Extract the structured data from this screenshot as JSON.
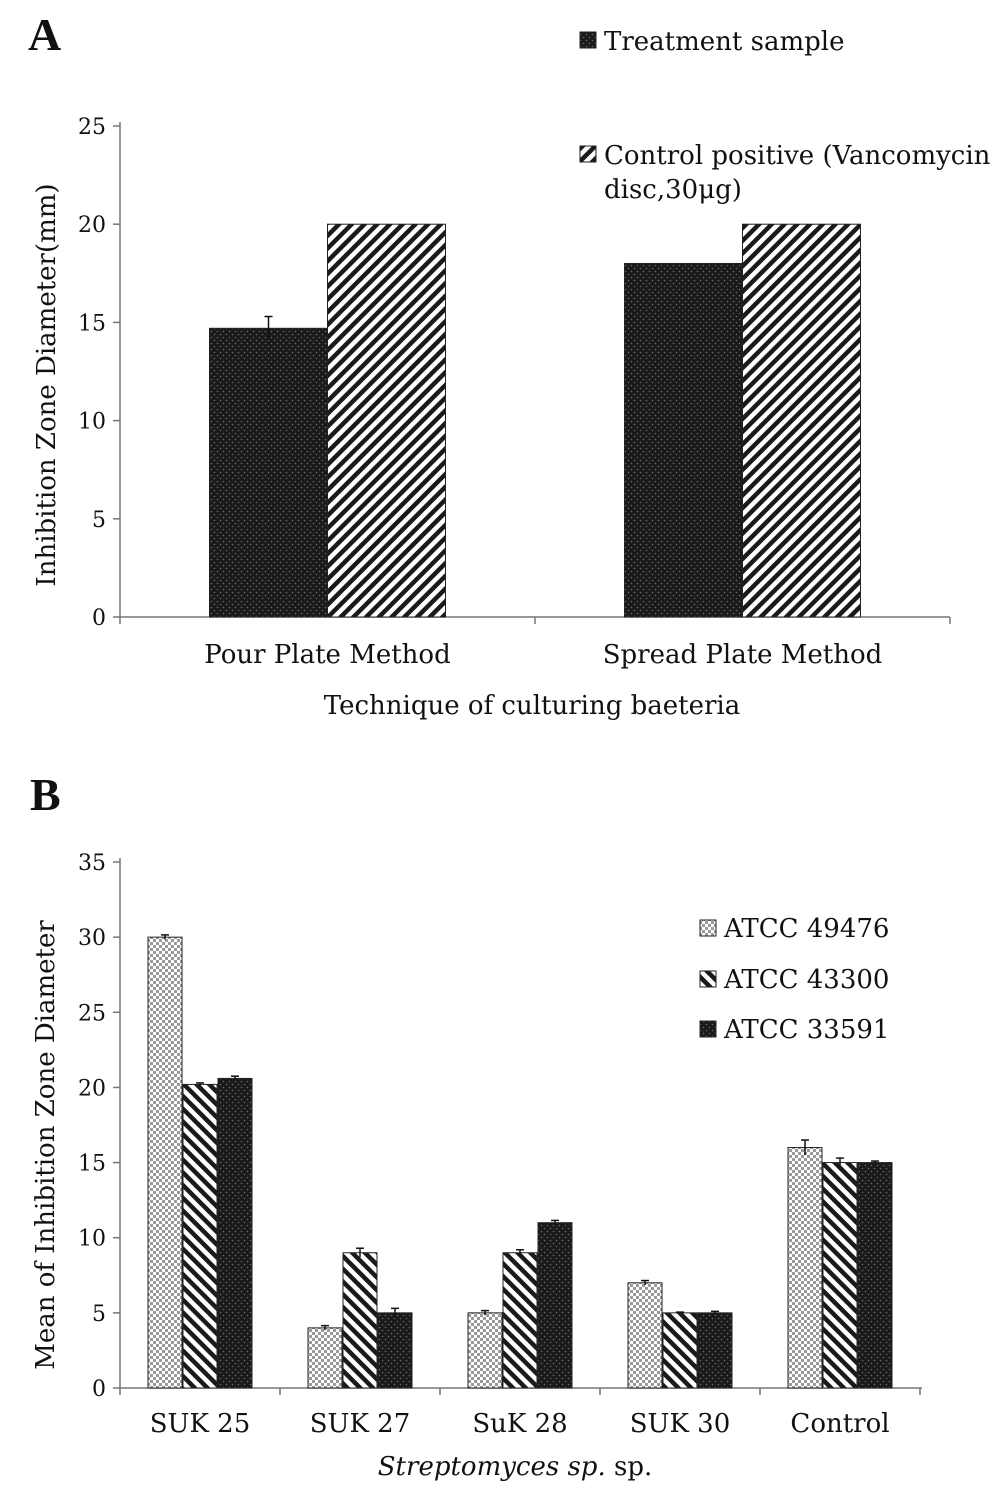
{
  "chart_data": [
    {
      "panel": "A",
      "type": "bar",
      "xlabel": "Technique of culturing baeteria",
      "ylabel": "Inhibition Zone Diameter(mm)",
      "ylim": [
        0,
        25
      ],
      "yticks": [
        0,
        5,
        10,
        15,
        20,
        25
      ],
      "categories": [
        "Pour Plate Method",
        "Spread Plate Method"
      ],
      "legend_position": "top-right",
      "series": [
        {
          "name": "Treatment sample",
          "pattern": "dark-dots",
          "values": [
            14.7,
            18
          ],
          "errors": [
            0.6,
            0
          ]
        },
        {
          "name_lines": [
            "Control positive (Vancomycin",
            "disc,30μg)"
          ],
          "pattern": "diagonal-hatch",
          "values": [
            20,
            20
          ],
          "errors": [
            0,
            0
          ]
        }
      ]
    },
    {
      "panel": "B",
      "type": "bar",
      "xlabel": "Streptomyces sp.",
      "ylabel": "Mean of Inhibition Zone Diameter",
      "ylim": [
        0,
        35
      ],
      "yticks": [
        0,
        5,
        10,
        15,
        20,
        25,
        30,
        35
      ],
      "categories": [
        "SUK 25",
        "SUK 27",
        "SuK  28",
        "SUK 30",
        "Control"
      ],
      "legend_position": "top-right",
      "series": [
        {
          "name": "ATCC 49476",
          "pattern": "light-checker",
          "values": [
            30,
            4,
            5,
            7,
            16
          ],
          "errors": [
            0.15,
            0.15,
            0.15,
            0.15,
            0.5
          ]
        },
        {
          "name": "ATCC 43300",
          "pattern": "diagonal-hatch-back",
          "values": [
            20.2,
            9,
            9,
            5,
            15
          ],
          "errors": [
            0.1,
            0.3,
            0.2,
            0.05,
            0.3
          ]
        },
        {
          "name": "ATCC 33591",
          "pattern": "dark-dots",
          "values": [
            20.6,
            5,
            11,
            5,
            15
          ],
          "errors": [
            0.15,
            0.3,
            0.15,
            0.1,
            0.1
          ]
        }
      ]
    }
  ]
}
